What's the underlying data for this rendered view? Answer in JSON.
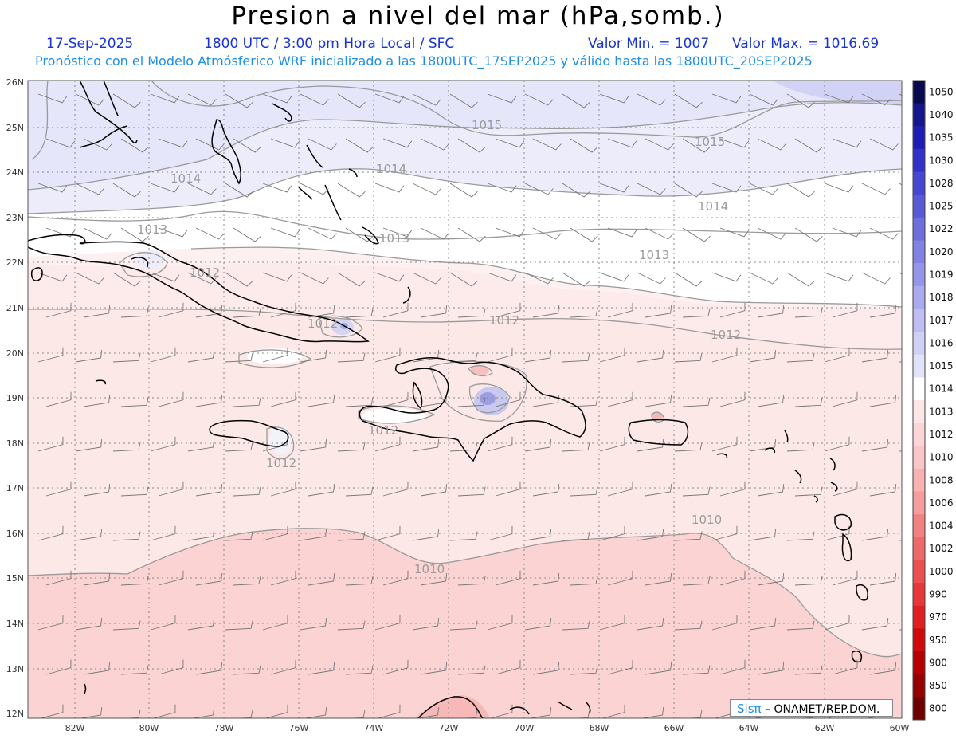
{
  "header": {
    "title": "Presion a nivel del mar (hPa,somb.)",
    "date": "17-Sep-2025",
    "time": "1800 UTC / 3:00 pm Hora Local / SFC",
    "min": "Valor Min. = 1007",
    "max": "Valor Max. = 1016.69",
    "forecast": "Pronóstico con el Modelo Atmósferico WRF inicializado a las 1800UTC_17SEP2025 y válido hasta las  1800UTC_20SEP2025"
  },
  "map": {
    "lon_labels": [
      "82W",
      "80W",
      "78W",
      "76W",
      "74W",
      "72W",
      "70W",
      "68W",
      "66W",
      "64W",
      "62W",
      "60W"
    ],
    "lat_labels": [
      "26N",
      "25N",
      "24N",
      "23N",
      "22N",
      "21N",
      "20N",
      "19N",
      "18N",
      "17N",
      "16N",
      "15N",
      "14N",
      "13N",
      "12N"
    ],
    "contour_labels": [
      "1015",
      "1015",
      "1014",
      "1014",
      "1014",
      "1013",
      "1013",
      "1013",
      "1012",
      "1012",
      "1012",
      "1012",
      "1012",
      "1012",
      "1010",
      "1010"
    ]
  },
  "colorbar": {
    "labels": [
      "1050",
      "1040",
      "1035",
      "1030",
      "1028",
      "1025",
      "1022",
      "1020",
      "1019",
      "1018",
      "1017",
      "1016",
      "1015",
      "1014",
      "1013",
      "1012",
      "1010",
      "1008",
      "1006",
      "1004",
      "1002",
      "1000",
      "990",
      "970",
      "950",
      "900",
      "850",
      "800"
    ],
    "colors": [
      "#0a0a50",
      "#16168c",
      "#1e1eb4",
      "#3232c8",
      "#4646d2",
      "#5a5ad8",
      "#6e6edc",
      "#8282e2",
      "#9696e8",
      "#aaaaee",
      "#bebef2",
      "#d0d0f6",
      "#e2e2fa",
      "#ffffff",
      "#fde6e6",
      "#fcd6d6",
      "#fac6c6",
      "#f8b2b2",
      "#f59c9c",
      "#f28282",
      "#ee6a6a",
      "#ea5050",
      "#e63838",
      "#e02020",
      "#d00a0a",
      "#b40000",
      "#960000",
      "#6e0000"
    ]
  },
  "credit": {
    "logo": "Sisπ",
    "text": "– ONAMET/REP.DOM."
  }
}
